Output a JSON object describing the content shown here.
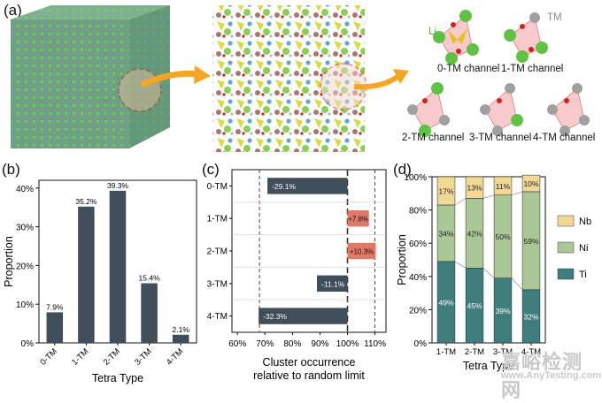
{
  "panels": {
    "a": "(a)",
    "b": "(b)",
    "c": "(c)",
    "d": "(d)"
  },
  "panel_a": {
    "atom_labels": {
      "li": "Li",
      "tm": "TM"
    },
    "channels": [
      "0-TM channel",
      "1-TM channel",
      "2-TM channel",
      "3-TM channel",
      "4-TM channel"
    ]
  },
  "watermark": {
    "cn": "嘉峪检测网",
    "en": "www.AnyTesting.com"
  },
  "colors": {
    "bar_dark": "#3f4e58",
    "bar_light": "#e07a66",
    "nb": "#f2d795",
    "ni": "#a9c895",
    "ti": "#3f7e7c",
    "arrow": "#f5a623",
    "li": "#5fc243",
    "tm": "#a0a0a0",
    "o": "#d42020"
  },
  "chart_data": [
    {
      "type": "bar",
      "panel": "b",
      "categories": [
        "0-TM",
        "1-TM",
        "2-TM",
        "3-TM",
        "4-TM"
      ],
      "values": [
        7.9,
        35.2,
        39.3,
        15.4,
        2.1
      ],
      "value_labels": [
        "7.9%",
        "35.2%",
        "39.3%",
        "15.4%",
        "2.1%"
      ],
      "xlabel": "Tetra Type",
      "ylabel": "Proportion",
      "ylim": [
        0,
        42
      ],
      "yticks": [
        0,
        10,
        20,
        30,
        40
      ],
      "ytick_labels": [
        "0%",
        "10%",
        "20%",
        "30%",
        "40%"
      ]
    },
    {
      "type": "bar",
      "panel": "c",
      "orientation": "horizontal",
      "categories": [
        "0-TM",
        "1-TM",
        "2-TM",
        "3-TM",
        "4-TM"
      ],
      "values": [
        70.9,
        107.8,
        110.3,
        88.9,
        67.7
      ],
      "value_labels": [
        "-29.1%",
        "+7.8%",
        "+10.3%",
        "-11.1%",
        "-32.3%"
      ],
      "xlabel": "Cluster occurrence\nrelative to random limit",
      "xlim": [
        58,
        114
      ],
      "xticks": [
        60,
        70,
        80,
        90,
        100,
        110
      ],
      "xtick_labels": [
        "60%",
        "70%",
        "80%",
        "90%",
        "100%",
        "110%"
      ],
      "reference_lines": [
        68,
        100,
        110
      ]
    },
    {
      "type": "bar",
      "panel": "d",
      "stacked": true,
      "categories": [
        "1-TM",
        "2-TM",
        "3-TM",
        "4-TM"
      ],
      "series": [
        {
          "name": "Ti",
          "values": [
            49,
            45,
            39,
            32
          ],
          "labels": [
            "49%",
            "45%",
            "39%",
            "32%"
          ]
        },
        {
          "name": "Ni",
          "values": [
            34,
            42,
            50,
            59
          ],
          "labels": [
            "34%",
            "42%",
            "50%",
            "59%"
          ]
        },
        {
          "name": "Nb",
          "values": [
            17,
            13,
            11,
            10
          ],
          "labels": [
            "17%",
            "13%",
            "11%",
            "10%"
          ]
        }
      ],
      "legend_order": [
        "Nb",
        "Ni",
        "Ti"
      ],
      "xlabel": "Tetra Type",
      "ylabel": "Proportion",
      "ylim": [
        0,
        100
      ],
      "yticks": [
        0,
        20,
        40,
        60,
        80,
        100
      ],
      "ytick_labels": [
        "0%",
        "20%",
        "40%",
        "60%",
        "80%",
        "100%"
      ]
    }
  ]
}
